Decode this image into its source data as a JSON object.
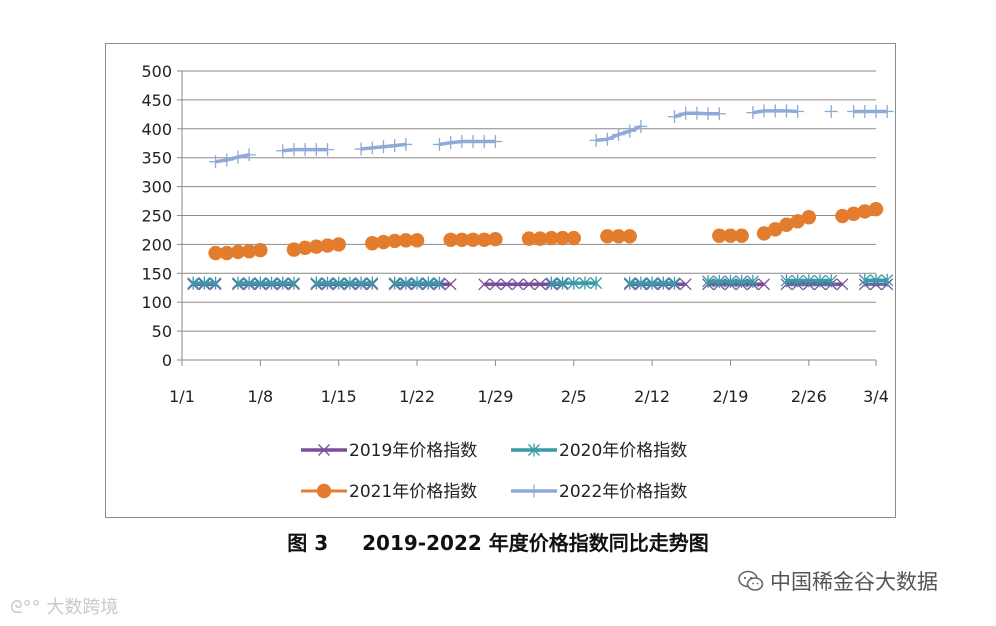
{
  "chart_data": {
    "type": "line",
    "title": "",
    "xlabel": "",
    "ylabel": "",
    "ylim": [
      0,
      500
    ],
    "yticks": [
      0,
      50,
      100,
      150,
      200,
      250,
      300,
      350,
      400,
      450,
      500
    ],
    "xticks": [
      {
        "day": 0,
        "label": "1/1"
      },
      {
        "day": 7,
        "label": "1/8"
      },
      {
        "day": 14,
        "label": "1/15"
      },
      {
        "day": 21,
        "label": "1/22"
      },
      {
        "day": 28,
        "label": "1/29"
      },
      {
        "day": 35,
        "label": "2/5"
      },
      {
        "day": 42,
        "label": "2/12"
      },
      {
        "day": 49,
        "label": "2/19"
      },
      {
        "day": 56,
        "label": "2/26"
      },
      {
        "day": 62,
        "label": "3/4"
      }
    ],
    "x_unit": "days since 1/1",
    "grid": true,
    "legend_position": "bottom",
    "series": [
      {
        "name": "2019年价格指数",
        "color": "#7a4f9a",
        "marker": "x",
        "segments": [
          [
            [
              1,
              131
            ],
            [
              2,
              131
            ],
            [
              3,
              131
            ]
          ],
          [
            [
              5,
              131
            ],
            [
              6,
              131
            ],
            [
              7,
              131
            ],
            [
              8,
              131
            ],
            [
              9,
              131
            ],
            [
              10,
              131
            ]
          ],
          [
            [
              12,
              131
            ],
            [
              13,
              131
            ],
            [
              14,
              131
            ],
            [
              15,
              131
            ],
            [
              16,
              131
            ],
            [
              17,
              131
            ]
          ],
          [
            [
              19,
              131
            ],
            [
              20,
              131
            ],
            [
              21,
              131
            ],
            [
              22,
              131
            ],
            [
              23,
              131
            ],
            [
              24,
              131
            ]
          ],
          [
            [
              27,
              131
            ],
            [
              28,
              131
            ],
            [
              29,
              131
            ],
            [
              30,
              131
            ],
            [
              31,
              131
            ],
            [
              32,
              131
            ],
            [
              33,
              131
            ],
            [
              34,
              131
            ]
          ],
          [
            [
              40,
              131
            ],
            [
              41,
              131
            ],
            [
              42,
              131
            ],
            [
              43,
              131
            ],
            [
              44,
              131
            ],
            [
              45,
              131
            ]
          ],
          [
            [
              47,
              131
            ],
            [
              48,
              131
            ],
            [
              49,
              131
            ],
            [
              50,
              131
            ],
            [
              51,
              131
            ],
            [
              52,
              131
            ]
          ],
          [
            [
              54,
              131
            ],
            [
              55,
              131
            ],
            [
              56,
              131
            ],
            [
              57,
              131
            ],
            [
              58,
              131
            ],
            [
              59,
              131
            ]
          ],
          [
            [
              61,
              131
            ],
            [
              62,
              131
            ],
            [
              63,
              131
            ]
          ]
        ]
      },
      {
        "name": "2020年价格指数",
        "color": "#3a9aa8",
        "marker": "asterisk",
        "segments": [
          [
            [
              1,
              133
            ],
            [
              2,
              133
            ],
            [
              3,
              133
            ]
          ],
          [
            [
              5,
              133
            ],
            [
              6,
              133
            ],
            [
              7,
              133
            ],
            [
              8,
              133
            ],
            [
              9,
              133
            ],
            [
              10,
              133
            ]
          ],
          [
            [
              12,
              133
            ],
            [
              13,
              133
            ],
            [
              14,
              133
            ],
            [
              15,
              133
            ],
            [
              16,
              133
            ],
            [
              17,
              133
            ]
          ],
          [
            [
              19,
              133
            ],
            [
              20,
              133
            ],
            [
              21,
              133
            ],
            [
              22,
              133
            ],
            [
              23,
              133
            ]
          ],
          [
            [
              33,
              133
            ],
            [
              34,
              133
            ],
            [
              35,
              133
            ],
            [
              36,
              133
            ],
            [
              37,
              133
            ]
          ],
          [
            [
              40,
              133
            ],
            [
              41,
              133
            ],
            [
              42,
              133
            ],
            [
              43,
              133
            ],
            [
              44,
              133
            ]
          ],
          [
            [
              47,
              136
            ],
            [
              48,
              136
            ],
            [
              49,
              136
            ],
            [
              50,
              136
            ],
            [
              51,
              136
            ]
          ],
          [
            [
              54,
              137
            ],
            [
              55,
              137
            ],
            [
              56,
              137
            ],
            [
              57,
              137
            ],
            [
              58,
              137
            ]
          ],
          [
            [
              61,
              138
            ],
            [
              62,
              138
            ],
            [
              63,
              138
            ]
          ]
        ]
      },
      {
        "name": "2021年价格指数",
        "color": "#e47c2d",
        "marker": "circle",
        "segments": [
          [
            [
              3,
              185
            ],
            [
              4,
              185
            ],
            [
              5,
              187
            ],
            [
              6,
              188
            ],
            [
              7,
              190
            ]
          ],
          [
            [
              10,
              191
            ],
            [
              11,
              194
            ],
            [
              12,
              196
            ],
            [
              13,
              198
            ],
            [
              14,
              200
            ]
          ],
          [
            [
              17,
              202
            ],
            [
              18,
              204
            ],
            [
              19,
              206
            ],
            [
              20,
              207
            ],
            [
              21,
              207
            ]
          ],
          [
            [
              24,
              208
            ],
            [
              25,
              208
            ],
            [
              26,
              208
            ],
            [
              27,
              208
            ],
            [
              28,
              209
            ]
          ],
          [
            [
              31,
              210
            ],
            [
              32,
              210
            ],
            [
              33,
              211
            ],
            [
              34,
              211
            ],
            [
              35,
              211
            ]
          ],
          [
            [
              38,
              214
            ],
            [
              39,
              214
            ],
            [
              40,
              214
            ]
          ],
          [
            [
              48,
              215
            ],
            [
              49,
              215
            ],
            [
              50,
              215
            ]
          ],
          [
            [
              52,
              219
            ],
            [
              53,
              226
            ],
            [
              54,
              234
            ],
            [
              55,
              240
            ],
            [
              56,
              247
            ]
          ],
          [
            [
              59,
              249
            ],
            [
              60,
              253
            ],
            [
              61,
              257
            ],
            [
              62,
              261
            ]
          ]
        ]
      },
      {
        "name": "2022年价格指数",
        "color": "#8eaad8",
        "marker": "plus",
        "segments": [
          [
            [
              3,
              343
            ],
            [
              4,
              346
            ],
            [
              5,
              351
            ],
            [
              6,
              355
            ]
          ],
          [
            [
              9,
              362
            ],
            [
              10,
              364
            ],
            [
              11,
              364
            ],
            [
              12,
              364
            ],
            [
              13,
              364
            ]
          ],
          [
            [
              16,
              365
            ],
            [
              17,
              367
            ],
            [
              18,
              369
            ],
            [
              19,
              371
            ],
            [
              20,
              373
            ]
          ],
          [
            [
              23,
              373
            ],
            [
              24,
              376
            ],
            [
              25,
              378
            ],
            [
              26,
              378
            ],
            [
              27,
              378
            ],
            [
              28,
              378
            ]
          ],
          [
            [
              37,
              380
            ],
            [
              38,
              382
            ],
            [
              39,
              390
            ],
            [
              40,
              396
            ],
            [
              41,
              404
            ]
          ],
          [
            [
              44,
              421
            ],
            [
              45,
              427
            ],
            [
              46,
              427
            ],
            [
              47,
              426
            ],
            [
              48,
              426
            ]
          ],
          [
            [
              51,
              428
            ],
            [
              52,
              431
            ],
            [
              53,
              431
            ],
            [
              54,
              431
            ],
            [
              55,
              430
            ]
          ],
          [
            [
              58,
              430
            ]
          ],
          [
            [
              60,
              430
            ],
            [
              61,
              430
            ],
            [
              62,
              430
            ],
            [
              63,
              430
            ]
          ]
        ]
      }
    ]
  },
  "caption": {
    "figure_number": "图 3",
    "title": "2019-2022 年度价格指数同比走势图"
  },
  "watermarks": {
    "left": "大数跨境",
    "right": "中国稀金谷大数据"
  },
  "icons": {
    "right": "wechat-icon",
    "left": "logo-swirl-icon"
  }
}
